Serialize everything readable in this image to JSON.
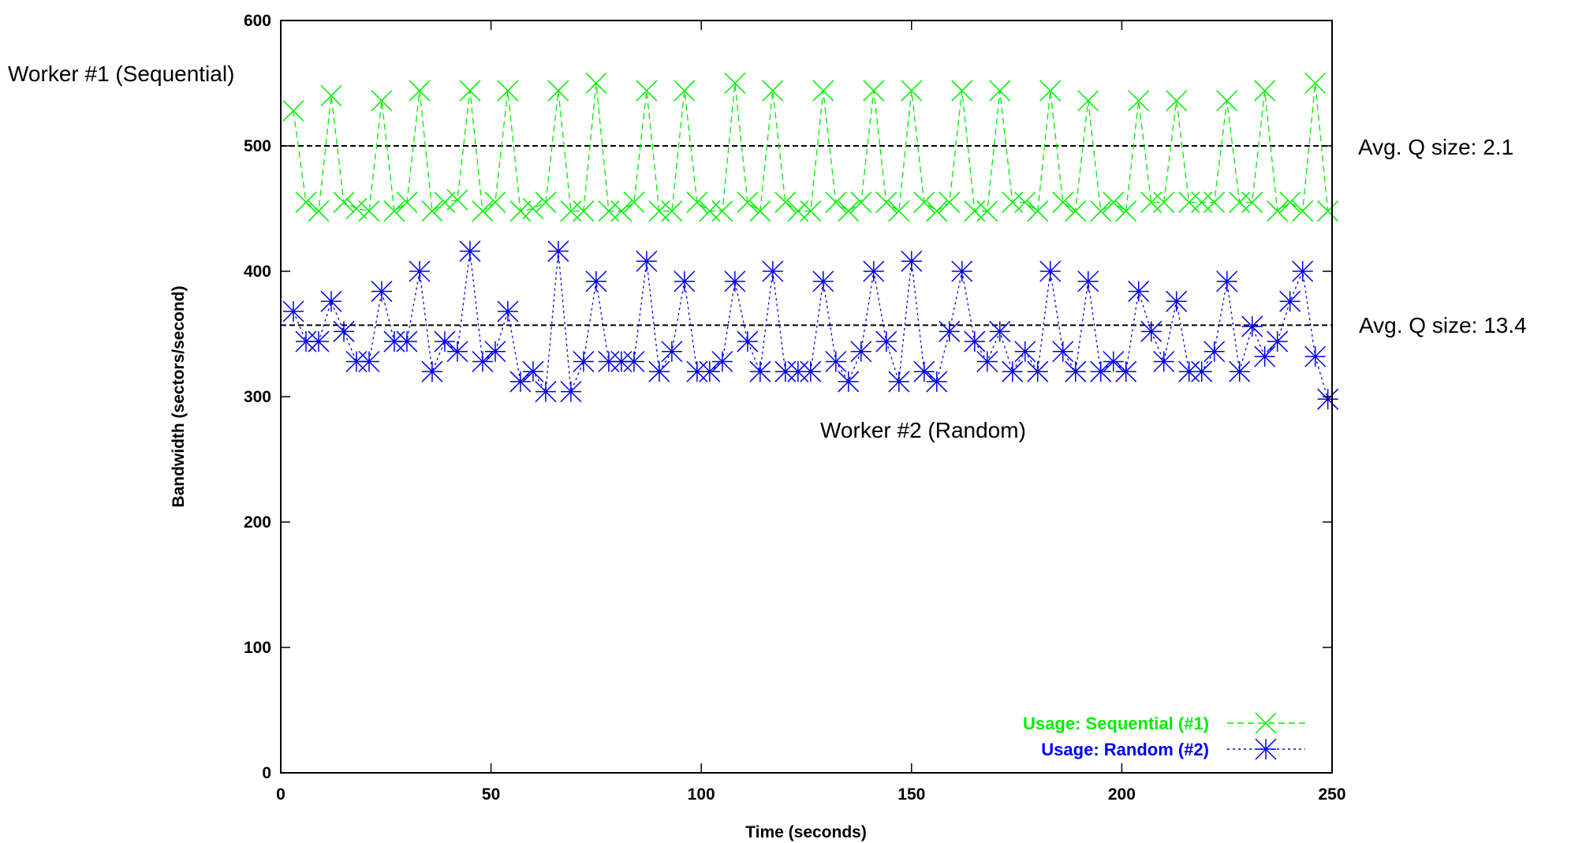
{
  "chart_data": {
    "type": "line",
    "title": "",
    "xlabel": "Time (seconds)",
    "ylabel": "Bandwidth (sectors/second)",
    "xlim": [
      0,
      250
    ],
    "ylim": [
      0,
      600
    ],
    "x_ticks": [
      0,
      50,
      100,
      150,
      200,
      250
    ],
    "y_ticks": [
      0,
      100,
      200,
      300,
      400,
      500,
      600
    ],
    "grid": false,
    "legend_position": "bottom-right",
    "series": [
      {
        "name": "Usage: Sequential (#1)",
        "color": "#00ee00",
        "marker": "x-cross",
        "line_style": "dashed",
        "x": [
          3,
          6,
          9,
          12,
          15,
          18,
          21,
          24,
          27,
          30,
          33,
          36,
          39,
          42,
          45,
          48,
          51,
          54,
          57,
          60,
          63,
          66,
          69,
          72,
          75,
          78,
          81,
          84,
          87,
          90,
          93,
          96,
          99,
          102,
          105,
          108,
          111,
          114,
          117,
          120,
          123,
          126,
          129,
          132,
          135,
          138,
          141,
          144,
          147,
          150,
          153,
          156,
          159,
          162,
          165,
          168,
          171,
          174,
          177,
          180,
          183,
          186,
          189,
          192,
          195,
          198,
          201,
          204,
          207,
          210,
          213,
          216,
          219,
          222,
          225,
          228,
          231,
          234,
          237,
          240,
          243,
          246,
          249
        ],
        "y": [
          528,
          455,
          448,
          540,
          455,
          450,
          448,
          536,
          448,
          455,
          544,
          448,
          455,
          457,
          544,
          448,
          455,
          544,
          448,
          450,
          455,
          544,
          448,
          448,
          550,
          448,
          448,
          455,
          544,
          448,
          448,
          544,
          455,
          448,
          448,
          550,
          455,
          448,
          544,
          455,
          448,
          448,
          544,
          455,
          448,
          455,
          544,
          455,
          448,
          544,
          455,
          448,
          455,
          544,
          448,
          448,
          544,
          455,
          455,
          448,
          544,
          455,
          448,
          536,
          448,
          455,
          448,
          536,
          455,
          455,
          536,
          455,
          455,
          455,
          536,
          455,
          455,
          544,
          448,
          455,
          448,
          550,
          448
        ]
      },
      {
        "name": "Usage: Random (#2)",
        "color": "#0000ee",
        "marker": "star",
        "line_style": "dotted",
        "x": [
          3,
          6,
          9,
          12,
          15,
          18,
          21,
          24,
          27,
          30,
          33,
          36,
          39,
          42,
          45,
          48,
          51,
          54,
          57,
          60,
          63,
          66,
          69,
          72,
          75,
          78,
          81,
          84,
          87,
          90,
          93,
          96,
          99,
          102,
          105,
          108,
          111,
          114,
          117,
          120,
          123,
          126,
          129,
          132,
          135,
          138,
          141,
          144,
          147,
          150,
          153,
          156,
          159,
          162,
          165,
          168,
          171,
          174,
          177,
          180,
          183,
          186,
          189,
          192,
          195,
          198,
          201,
          204,
          207,
          210,
          213,
          216,
          219,
          222,
          225,
          228,
          231,
          234,
          237,
          240,
          243,
          246,
          249
        ],
        "y": [
          368,
          344,
          344,
          376,
          352,
          328,
          328,
          384,
          344,
          344,
          400,
          320,
          344,
          336,
          416,
          328,
          336,
          368,
          312,
          320,
          304,
          416,
          304,
          328,
          392,
          328,
          328,
          328,
          408,
          320,
          336,
          392,
          320,
          320,
          328,
          392,
          344,
          320,
          400,
          320,
          320,
          320,
          392,
          328,
          312,
          336,
          400,
          344,
          312,
          408,
          320,
          312,
          352,
          400,
          344,
          328,
          352,
          320,
          336,
          320,
          400,
          336,
          320,
          392,
          320,
          328,
          320,
          384,
          352,
          328,
          376,
          320,
          320,
          336,
          392,
          320,
          356,
          332,
          344,
          376,
          400,
          332,
          298
        ]
      }
    ],
    "reference_lines": [
      {
        "y": 500,
        "style": "dashed",
        "color": "#000000"
      },
      {
        "y": 357,
        "style": "dashed",
        "color": "#000000"
      }
    ],
    "annotations": [
      {
        "text": "Worker #1 (Sequential)"
      },
      {
        "text": "Avg. Q size: 2.1"
      },
      {
        "text": "Avg. Q size: 13.4"
      },
      {
        "text": "Worker #2 (Random)"
      }
    ]
  }
}
